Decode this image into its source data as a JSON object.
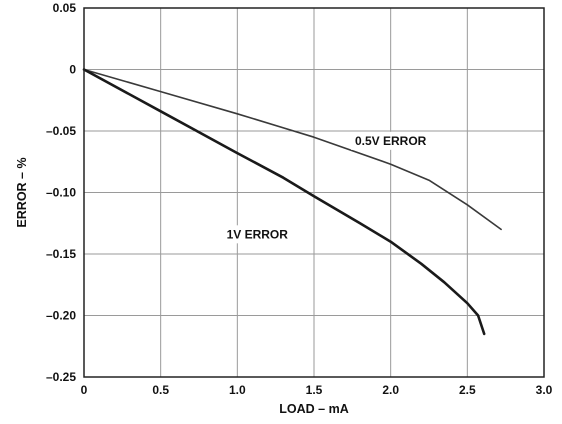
{
  "chart_data": {
    "type": "line",
    "title": "",
    "xlabel": "LOAD – mA",
    "ylabel": "ERROR – %",
    "xlim": [
      0,
      3.0
    ],
    "ylim": [
      -0.25,
      0.05
    ],
    "grid": true,
    "legend": "none (inline series labels)",
    "x_ticks": [
      "0",
      "0.5",
      "1.0",
      "1.5",
      "2.0",
      "2.5",
      "3.0"
    ],
    "y_ticks": [
      "0.05",
      "0",
      "–0.05",
      "–0.10",
      "–0.15",
      "–0.20",
      "–0.25"
    ],
    "series": [
      {
        "name": "0.5V ERROR",
        "x": [
          0,
          0.5,
          1.0,
          1.5,
          2.0,
          2.25,
          2.5,
          2.72
        ],
        "y": [
          0,
          -0.018,
          -0.036,
          -0.055,
          -0.077,
          -0.09,
          -0.11,
          -0.13
        ]
      },
      {
        "name": "1V ERROR",
        "x": [
          0,
          0.5,
          1.0,
          1.3,
          1.5,
          1.8,
          2.0,
          2.2,
          2.35,
          2.5,
          2.57,
          2.61
        ],
        "y": [
          0,
          -0.034,
          -0.068,
          -0.088,
          -0.103,
          -0.125,
          -0.14,
          -0.158,
          -0.173,
          -0.19,
          -0.2,
          -0.215
        ]
      }
    ]
  },
  "colors": {
    "grid": "#9a9a9a",
    "frame": "#222222",
    "series_1": "#3a3a3a",
    "series_2": "#1a1a1a",
    "label_background": "#ffffff"
  }
}
